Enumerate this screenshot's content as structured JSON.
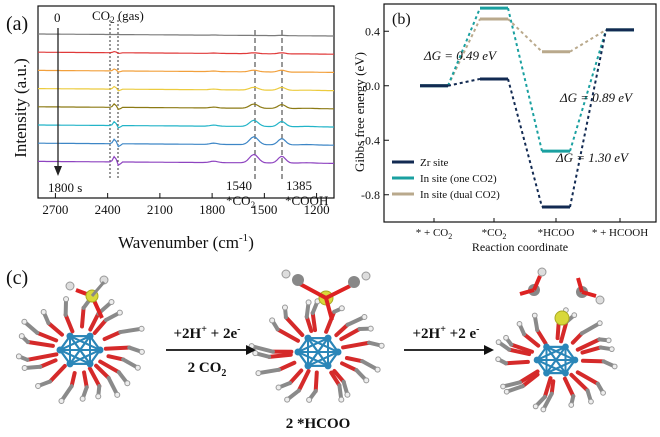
{
  "panel_a": {
    "label": "(a)",
    "ylabel": "Intensity (a.u.)",
    "xlabel": "Wavenumber (cm",
    "xlabel_sup": "-1",
    "xlabel_end": ")",
    "annot_start": "0",
    "annot_end": "1800 s",
    "annot_co2": "CO",
    "annot_co2_sub": "2",
    "annot_co2_rest": " (gas)",
    "peak1_num": "1540",
    "peak1_label": "*CO",
    "peak1_sub": "2",
    "peak2_num": "1385",
    "peak2_label": "*COOH",
    "xticks": [
      "2700",
      "2400",
      "2100",
      "1800",
      "1500",
      "1200"
    ]
  },
  "panel_b": {
    "label": "(b)",
    "ylabel": "Gibbs free energy (eV)",
    "xlabel": "Reaction coordinate",
    "yticks": [
      "0.4",
      "0.0",
      "-0.4",
      "-0.8"
    ],
    "xcats": [
      "* + CO2",
      "*CO2",
      "*HCOO",
      "* + HCOOH"
    ],
    "dg1": "ΔG = 0.49 eV",
    "dg2": "ΔG = 0.89 eV",
    "dg3": "ΔG = 1.30 eV",
    "legend": [
      "Zr site",
      "In site (one CO2)",
      "In site (dual CO2)"
    ]
  },
  "panel_c": {
    "label": "(c)",
    "step1_top": "+2H+ + 2e-",
    "step1_bottom": "2 CO2",
    "step2_top": "+2H+ +2 e-",
    "mid_label": "2 *HCOO"
  },
  "chart_data": [
    {
      "type": "line",
      "title": "",
      "xlabel": "Wavenumber (cm-1)",
      "ylabel": "Intensity (a.u.)",
      "xlim": [
        2800,
        1100
      ],
      "x_reversed": true,
      "grid": false,
      "annotations": [
        "0",
        "1800 s",
        "CO2 (gas)",
        "1540 *CO2",
        "1385 *COOH"
      ],
      "series": [
        {
          "color": "#7b7b7b",
          "values": [
            0.0,
            0.0,
            0.0,
            0.01,
            0.0,
            0.01,
            0.0
          ]
        },
        {
          "color": "#e03a3a",
          "values": [
            0.0,
            0.06,
            0.0,
            0.02,
            0.03,
            0.04,
            0.01
          ]
        },
        {
          "color": "#f2a03c",
          "values": [
            0.0,
            0.1,
            0.0,
            0.03,
            0.06,
            0.07,
            0.02
          ]
        },
        {
          "color": "#eccb3e",
          "values": [
            0.0,
            0.14,
            0.01,
            0.04,
            0.1,
            0.11,
            0.03
          ]
        },
        {
          "color": "#8c7a14",
          "values": [
            0.0,
            0.18,
            0.01,
            0.05,
            0.15,
            0.15,
            0.04
          ]
        },
        {
          "color": "#22b4c8",
          "values": [
            0.0,
            0.2,
            0.02,
            0.06,
            0.22,
            0.2,
            0.05
          ]
        },
        {
          "color": "#3d86c6",
          "values": [
            0.0,
            0.24,
            0.02,
            0.07,
            0.28,
            0.24,
            0.06
          ]
        },
        {
          "color": "#8e44c0",
          "values": [
            0.0,
            0.28,
            0.03,
            0.08,
            0.3,
            0.26,
            0.06
          ]
        }
      ],
      "x": [
        2750,
        2350,
        2100,
        1800,
        1540,
        1385,
        1150
      ]
    },
    {
      "type": "line",
      "title": "",
      "xlabel": "Reaction coordinate",
      "ylabel": "Gibbs free energy (eV)",
      "ylim": [
        -1.0,
        0.6
      ],
      "categories": [
        "* + CO2",
        "*CO2",
        "*HCOO",
        "* + HCOOH"
      ],
      "legend_position": "bottom-left",
      "series": [
        {
          "name": "Zr site",
          "color": "#122a52",
          "values": [
            0.0,
            0.05,
            -0.89,
            0.41
          ]
        },
        {
          "name": "In site (one CO2)",
          "color": "#1aa0a0",
          "values": [
            0.0,
            0.57,
            -0.48,
            0.41
          ]
        },
        {
          "name": "In site (dual CO2)",
          "color": "#b9a98c",
          "values": [
            0.0,
            0.49,
            0.25,
            0.41
          ]
        }
      ]
    }
  ]
}
